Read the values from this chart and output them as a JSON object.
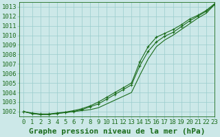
{
  "title": "Graphe pression niveau de la mer (hPa)",
  "bg_color": "#cce8e8",
  "plot_bg_color": "#cce8e8",
  "grid_color": "#99cccc",
  "line_color": "#1a6b1a",
  "marker_color": "#1a6b1a",
  "xlim": [
    -0.5,
    23
  ],
  "ylim": [
    1001.5,
    1013.5
  ],
  "xticks": [
    0,
    1,
    2,
    3,
    4,
    5,
    6,
    7,
    8,
    9,
    10,
    11,
    12,
    13,
    14,
    15,
    16,
    17,
    18,
    19,
    20,
    21,
    22,
    23
  ],
  "yticks": [
    1002,
    1003,
    1004,
    1005,
    1006,
    1007,
    1008,
    1009,
    1010,
    1011,
    1012,
    1013
  ],
  "series": [
    [
      1002.0,
      1001.8,
      1001.7,
      1001.7,
      1001.8,
      1001.9,
      1002.0,
      1002.1,
      1002.2,
      1002.4,
      1002.8,
      1003.2,
      1003.6,
      1004.0,
      1005.8,
      1007.5,
      1008.8,
      1009.5,
      1010.0,
      1010.6,
      1011.2,
      1011.8,
      1012.3,
      1013.2
    ],
    [
      1002.0,
      1001.8,
      1001.7,
      1001.7,
      1001.8,
      1001.9,
      1002.0,
      1002.2,
      1002.5,
      1002.8,
      1003.3,
      1003.8,
      1004.3,
      1004.8,
      1006.8,
      1008.3,
      1009.3,
      1009.9,
      1010.3,
      1010.9,
      1011.5,
      1012.0,
      1012.5,
      1013.2
    ],
    [
      1002.0,
      1001.85,
      1001.75,
      1001.75,
      1001.85,
      1001.95,
      1002.1,
      1002.3,
      1002.6,
      1003.0,
      1003.5,
      1004.0,
      1004.5,
      1005.0,
      1007.2,
      1008.8,
      1009.8,
      1010.2,
      1010.6,
      1011.1,
      1011.7,
      1012.1,
      1012.6,
      1013.3
    ]
  ],
  "series_with_markers": [
    1,
    2
  ],
  "title_fontsize": 8,
  "tick_fontsize": 6.5,
  "label_color": "#1a6b1a",
  "xlabel_fontweight": "bold"
}
